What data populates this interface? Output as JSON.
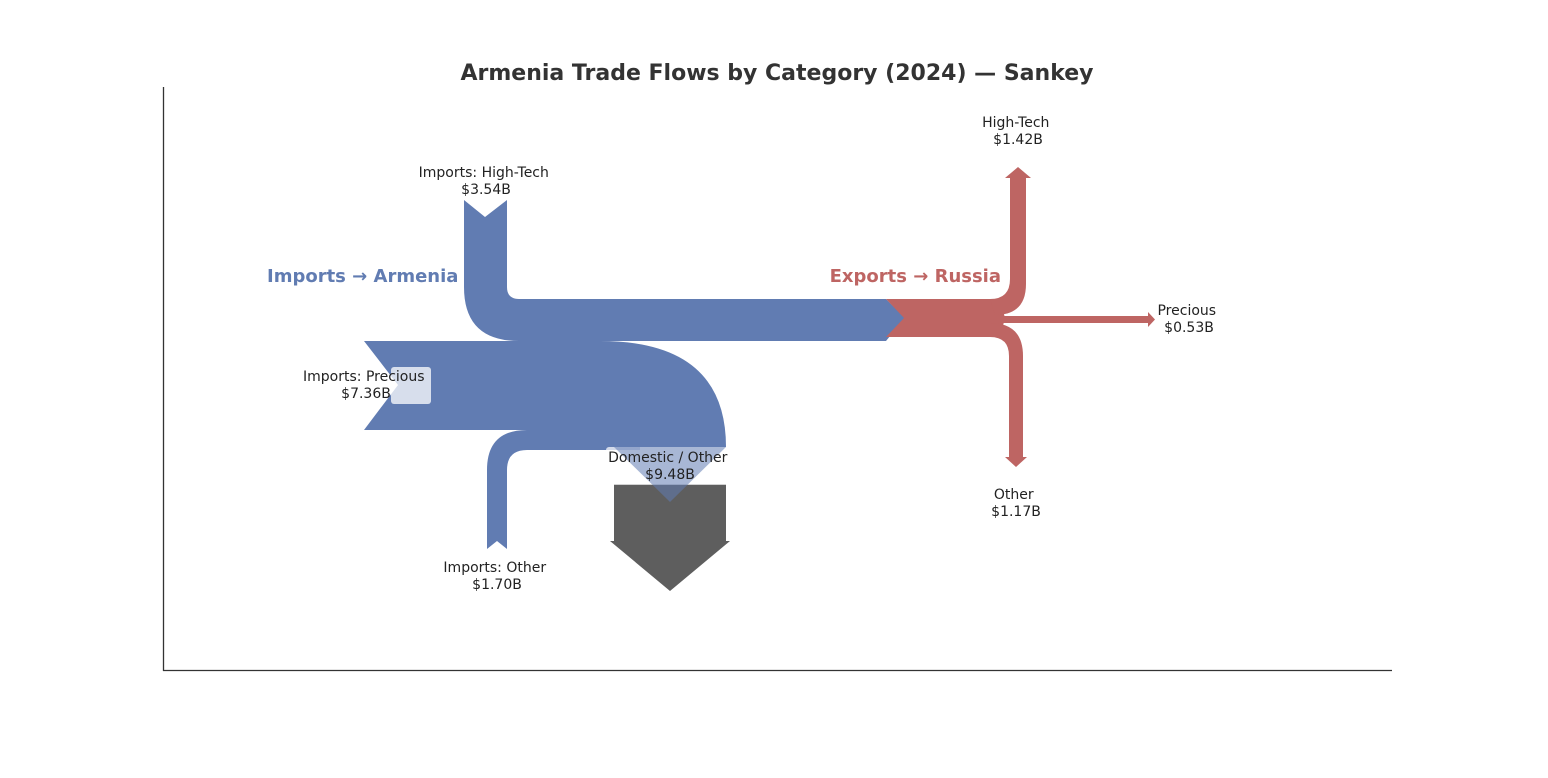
{
  "chart_data": {
    "type": "sankey",
    "title": "Armenia Trade Flows by Category (2024) — Sankey",
    "units": "$B",
    "groups": [
      {
        "name": "Imports → Armenia",
        "color": "#617cb2",
        "flows": [
          {
            "label": "Imports: High-Tech",
            "value_text": "$3.54B",
            "value": 3.54,
            "direction": "in"
          },
          {
            "label": "Imports: Precious",
            "value_text": "$7.36B",
            "value": 7.36,
            "direction": "in"
          },
          {
            "label": "Imports: Other",
            "value_text": "$1.70B",
            "value": 1.7,
            "direction": "in"
          },
          {
            "label": "Domestic / Other",
            "value_text": "$9.48B",
            "value": 9.48,
            "direction": "out",
            "color": "#5e5e5e"
          }
        ]
      },
      {
        "name": "Exports → Russia",
        "color": "#be6563",
        "flows": [
          {
            "label": "High-Tech",
            "value_text": "$1.42B",
            "value": 1.42,
            "direction": "out"
          },
          {
            "label": "Precious",
            "value_text": "$0.53B",
            "value": 0.53,
            "direction": "out"
          },
          {
            "label": "Other",
            "value_text": "$1.17B",
            "value": 1.17,
            "direction": "out"
          }
        ]
      }
    ],
    "legend": "none",
    "grid": false
  }
}
